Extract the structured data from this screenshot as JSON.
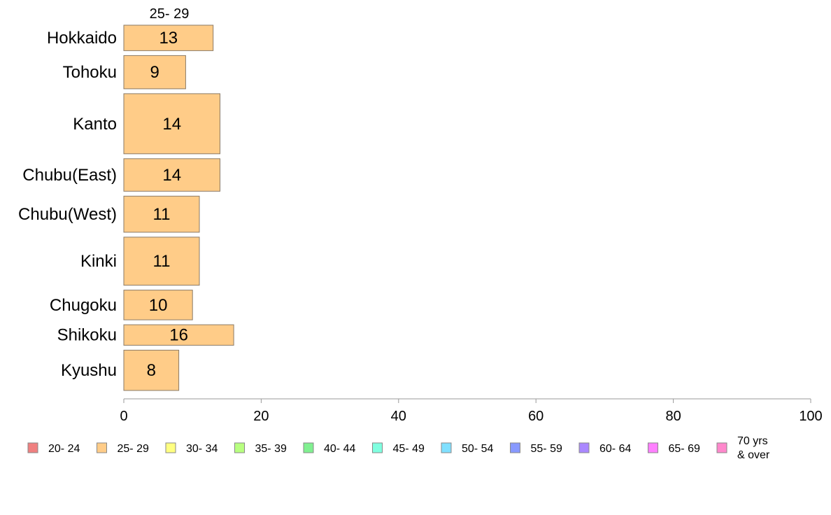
{
  "chart_data": {
    "type": "bar",
    "orientation": "horizontal",
    "variable_width": true,
    "column_header": "25- 29",
    "categories": [
      "Hokkaido",
      "Tohoku",
      "Kanto",
      "Chubu(East)",
      "Chubu(West)",
      "Kinki",
      "Chugoku",
      "Shikoku",
      "Kyushu"
    ],
    "series": [
      {
        "name": "25- 29",
        "color": "#ffcc88",
        "values": [
          13,
          9,
          14,
          14,
          11,
          11,
          10,
          16,
          8
        ],
        "value_labels": [
          "13",
          "9",
          "14",
          "14",
          "11",
          "11",
          "10",
          "16",
          "8"
        ]
      }
    ],
    "relative_row_heights": [
      36,
      47,
      85,
      46,
      51,
      68,
      42,
      29,
      57
    ],
    "xlim": [
      0,
      100
    ],
    "xticks": [
      "0",
      "20",
      "40",
      "60",
      "80",
      "100"
    ],
    "grid": false,
    "legend_position": "bottom",
    "legend": [
      {
        "label": "20- 24",
        "color": "#f08080"
      },
      {
        "label": "25- 29",
        "color": "#ffcc88"
      },
      {
        "label": "30- 34",
        "color": "#ffff80"
      },
      {
        "label": "35- 39",
        "color": "#b8ff80"
      },
      {
        "label": "40- 44",
        "color": "#80f090"
      },
      {
        "label": "45- 49",
        "color": "#80ffe0"
      },
      {
        "label": "50- 54",
        "color": "#80e0ff"
      },
      {
        "label": "55- 59",
        "color": "#8899ff"
      },
      {
        "label": "60- 64",
        "color": "#aa88ff"
      },
      {
        "label": "65- 69",
        "color": "#ff80ff"
      },
      {
        "label": "70 yrs\n& over",
        "color": "#ff88cc"
      }
    ]
  }
}
